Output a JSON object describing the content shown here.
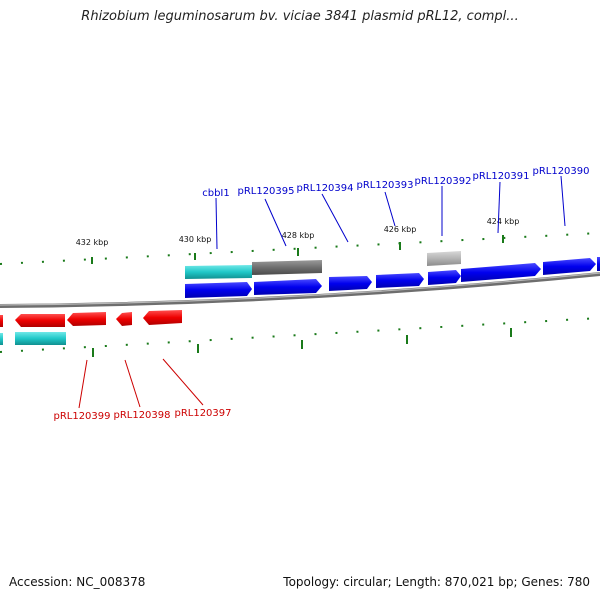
{
  "title": "Rhizobium leguminosarum bv. viciae 3841 plasmid pRL12, compl...",
  "footer": {
    "accession": "Accession: NC_008378",
    "summary": "Topology: circular; Length: 870,021 bp; Genes: 780"
  },
  "scale_labels": [
    "432 kbp",
    "430 kbp",
    "428 kbp",
    "426 kbp",
    "424 kbp"
  ],
  "forward_gene_labels": [
    "cbbI1",
    "pRL120395",
    "pRL120394",
    "pRL120393",
    "pRL120392",
    "pRL120391",
    "pRL120390"
  ],
  "reverse_gene_labels": [
    "pRL120399",
    "pRL120398",
    "pRL120397"
  ],
  "colors": {
    "forward_gene": "#0000ee",
    "reverse_gene": "#ee0000",
    "rna_feature": "#20c8c8",
    "other_feature_dark": "#6e6e6e",
    "other_feature_light": "#b4b4b4",
    "backbone": "#8a8a8a",
    "tick": "#1a7a1a",
    "forward_label": "#0000cc",
    "reverse_label": "#cc0000"
  }
}
